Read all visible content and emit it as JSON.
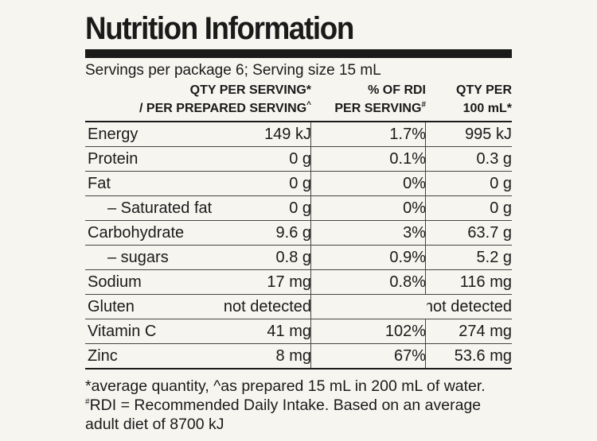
{
  "title": "Nutrition Information",
  "serving_info": "Servings per package 6; Serving size 15 mL",
  "headers": {
    "col1_line1": "QTY PER SERVING*",
    "col1_line2": "/ PER PREPARED SERVING^",
    "col2_line1": "% OF RDI",
    "col2_line2": "PER SERVING#",
    "col3_line1": "QTY PER",
    "col3_line2": "100 mL*"
  },
  "rows": [
    {
      "label": "Energy",
      "per_serving": "149 kJ",
      "rdi": "1.7%",
      "per_100ml": "995 kJ"
    },
    {
      "label": "Protein",
      "per_serving": "0 g",
      "rdi": "0.1%",
      "per_100ml": "0.3 g"
    },
    {
      "label": "Fat",
      "per_serving": "0 g",
      "rdi": "0%",
      "per_100ml": "0 g"
    },
    {
      "label": "– Saturated fat",
      "per_serving": "0 g",
      "rdi": "0%",
      "per_100ml": "0 g"
    },
    {
      "label": "Carbohydrate",
      "per_serving": "9.6 g",
      "rdi": "3%",
      "per_100ml": "63.7 g"
    },
    {
      "label": "– sugars",
      "per_serving": "0.8 g",
      "rdi": "0.9%",
      "per_100ml": "5.2 g"
    },
    {
      "label": "Sodium",
      "per_serving": "17 mg",
      "rdi": "0.8%",
      "per_100ml": "116 mg"
    },
    {
      "label": "Gluten",
      "per_serving": "not detected",
      "rdi": "",
      "per_100ml": "not detected"
    },
    {
      "label": "Vitamin C",
      "per_serving": "41 mg",
      "rdi": "102%",
      "per_100ml": "274 mg"
    },
    {
      "label": "Zinc",
      "per_serving": "8 mg",
      "rdi": "67%",
      "per_100ml": "53.6 mg"
    }
  ],
  "footnotes": {
    "line1": "*average quantity, ^as prepared 15 mL in 200 mL of water.",
    "line2": "#RDI = Recommended Daily Intake. Based on an average",
    "line3": "adult diet of 8700 kJ"
  }
}
